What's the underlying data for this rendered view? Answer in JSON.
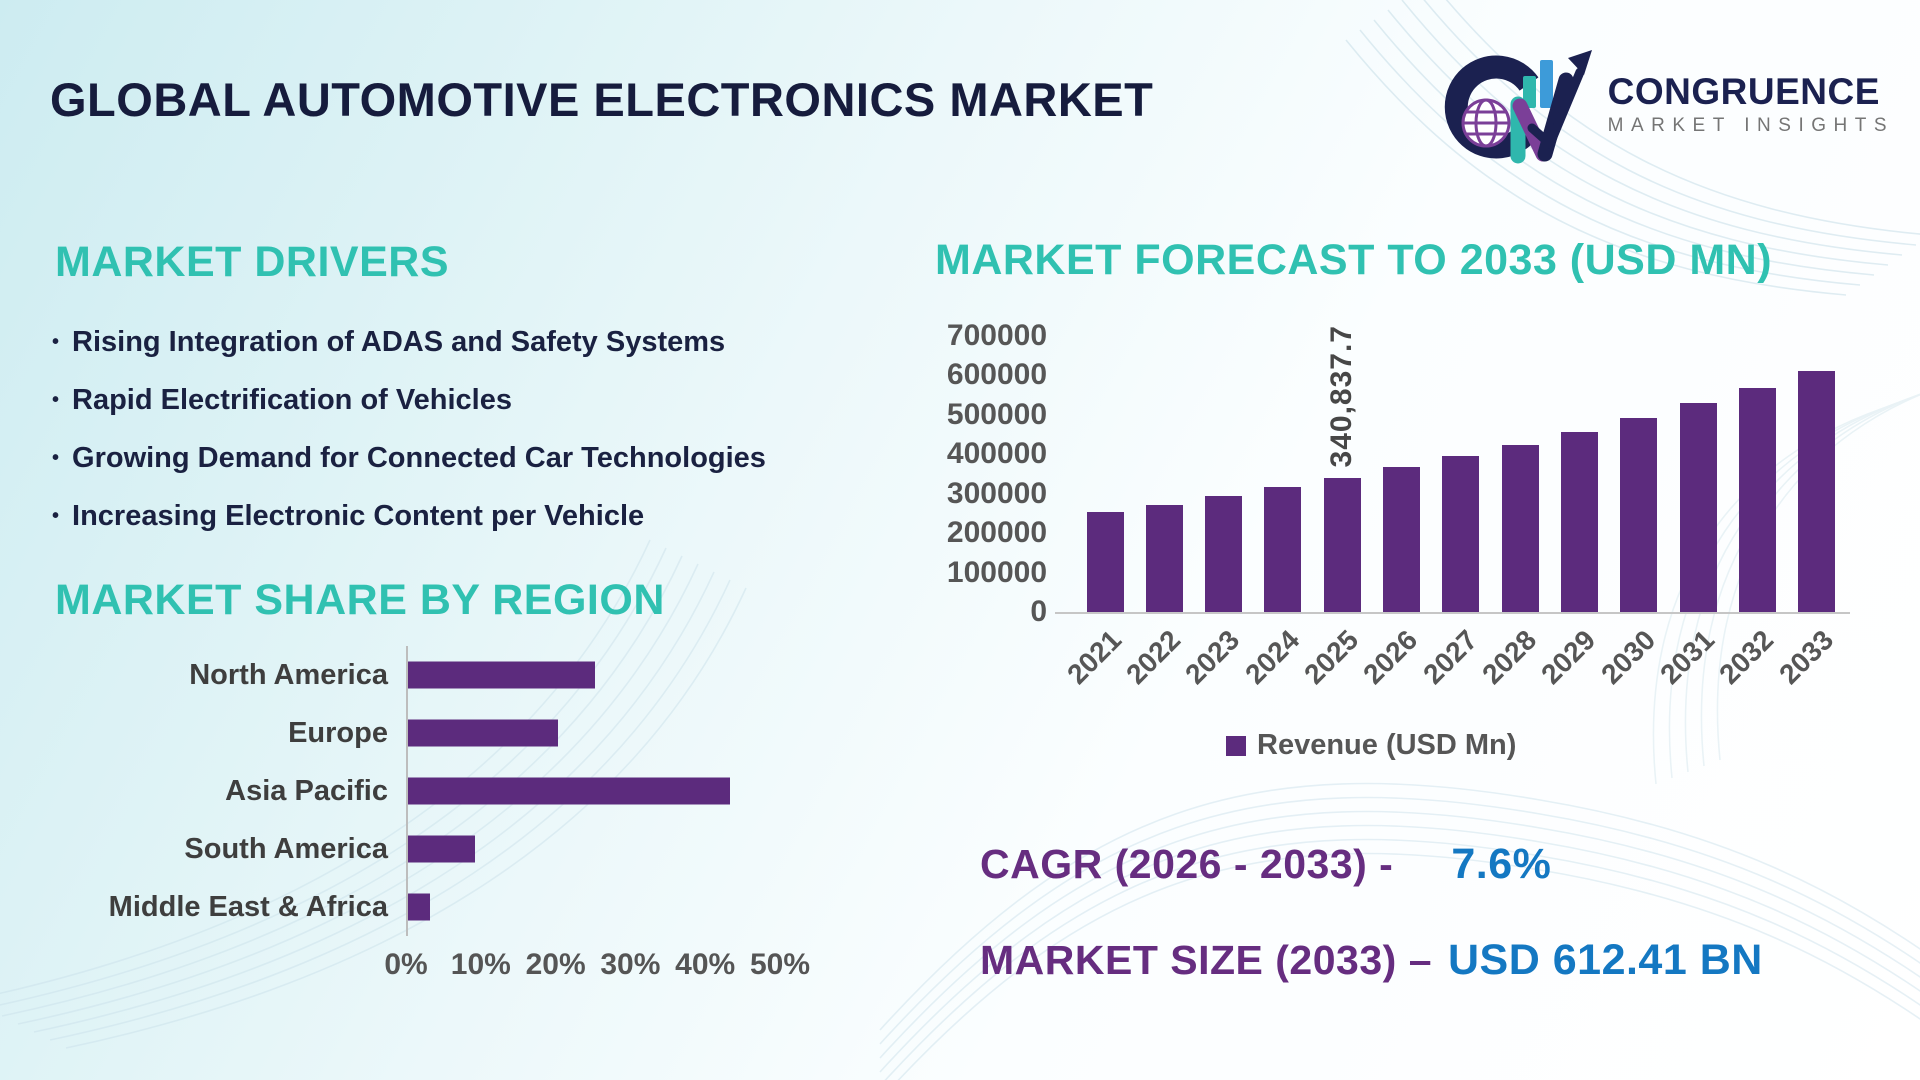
{
  "header": {
    "title": "GLOBAL AUTOMOTIVE ELECTRONICS MARKET",
    "logo": {
      "name": "CONGRUENCE",
      "tagline": "MARKET INSIGHTS"
    }
  },
  "drivers": {
    "heading": "MARKET DRIVERS",
    "items": [
      "Rising Integration of ADAS and Safety Systems",
      "Rapid Electrification of Vehicles",
      "Growing Demand for Connected Car Technologies",
      "Increasing Electronic Content per Vehicle"
    ]
  },
  "share": {
    "heading": "MARKET SHARE BY REGION"
  },
  "forecast": {
    "heading": "MARKET FORECAST TO 2033 (USD MN)",
    "legend": "Revenue (USD Mn)"
  },
  "stats": {
    "cagr_label": "CAGR (2026 - 2033) -",
    "cagr_value": "7.6%",
    "size_label": "MARKET SIZE (2033) –",
    "size_value": "USD 612.41 BN"
  },
  "chart_data": [
    {
      "type": "bar",
      "orientation": "horizontal",
      "title": "MARKET SHARE BY REGION",
      "categories": [
        "North America",
        "Europe",
        "Asia Pacific",
        "South America",
        "Middle East & Africa"
      ],
      "values": [
        25,
        20,
        43,
        9,
        3
      ],
      "unit": "%",
      "xlim": [
        0,
        50
      ],
      "xticks": [
        0,
        10,
        20,
        30,
        40,
        50
      ],
      "xtick_labels": [
        "0%",
        "10%",
        "20%",
        "30%",
        "40%",
        "50%"
      ],
      "bar_color": "#5c2b7d",
      "grid": false
    },
    {
      "type": "bar",
      "orientation": "vertical",
      "title": "MARKET FORECAST TO 2033 (USD MN)",
      "categories": [
        "2021",
        "2022",
        "2023",
        "2024",
        "2025",
        "2026",
        "2027",
        "2028",
        "2029",
        "2030",
        "2031",
        "2032",
        "2033"
      ],
      "values": [
        253000,
        272500,
        294300,
        317800,
        340837.7,
        366741,
        394613,
        424604,
        456874,
        491596,
        528958,
        569159,
        612410
      ],
      "ylim": [
        0,
        700000
      ],
      "yticks": [
        0,
        100000,
        200000,
        300000,
        400000,
        500000,
        600000,
        700000
      ],
      "ylabel": "",
      "xlabel": "",
      "legend": [
        "Revenue (USD Mn)"
      ],
      "legend_position": "bottom",
      "annotation": {
        "category": "2025",
        "label": "340,837.7"
      },
      "bar_color": "#5c2b7d",
      "grid": false
    }
  ],
  "colors": {
    "accent_teal": "#30c1b1",
    "title_navy": "#161c3d",
    "bar_purple": "#5c2b7d",
    "stat_purple": "#662d80",
    "stat_blue": "#1478c2",
    "chart_text_gray": "#565656"
  }
}
